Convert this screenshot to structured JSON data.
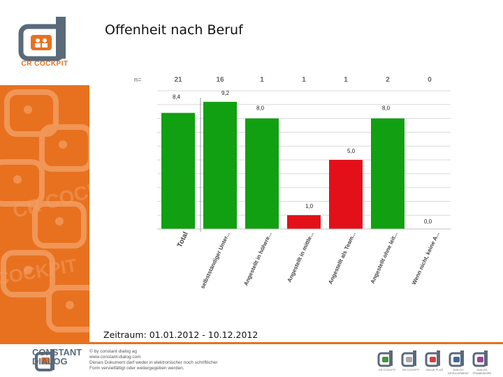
{
  "header": {
    "title": "Offenheit nach Beruf",
    "logo_text": "CR COCKPIT"
  },
  "chart_data": {
    "type": "bar",
    "n_label": "n=",
    "categories": [
      "Total",
      "selbstständiger Unter...",
      "Angestellt in höhere...",
      "Angestellt in mittle...",
      "Angestellt als Team...",
      "Angestellt ohne leit...",
      "Wenn nicht, keine A..."
    ],
    "n_values": [
      "21",
      "16",
      "1",
      "1",
      "1",
      "2",
      "0"
    ],
    "values": [
      8.4,
      9.2,
      8.0,
      1.0,
      5.0,
      8.0,
      0.0
    ],
    "value_labels": [
      "8,4",
      "9,2",
      "8,0",
      "1,0",
      "5,0",
      "8,0",
      "0,0"
    ],
    "colors": [
      "#11a011",
      "#11a011",
      "#11a011",
      "#e3101a",
      "#e3101a",
      "#11a011",
      "#11a011"
    ],
    "ylim": [
      0,
      10
    ],
    "grid": true,
    "legend": "none"
  },
  "footer": {
    "period": "Zeitraum: 01.01.2012 - 10.12.2012",
    "brand_line1": "CONSTANT",
    "brand_line2": "DIALOG",
    "copyright_lines": [
      "© by constant dialog ag",
      "www.constant-dialog.com",
      "Dieses Dokument darf weder in elektronischer noch schriftlicher",
      "Form vervielfältigt oder weitergegeben werden."
    ],
    "product_icons": [
      {
        "label": "CR COCKPIT",
        "color": "#3c9a3c"
      },
      {
        "label": "CR COCKPIT",
        "color": "#aaaaaa"
      },
      {
        "label": "VALUE PLUS",
        "color": "#d04040"
      },
      {
        "label": "DIALOG DEVELOPMENT",
        "color": "#3c6a9a"
      },
      {
        "label": "DIALOG FRAMEWORK",
        "color": "#a040a0"
      }
    ]
  }
}
